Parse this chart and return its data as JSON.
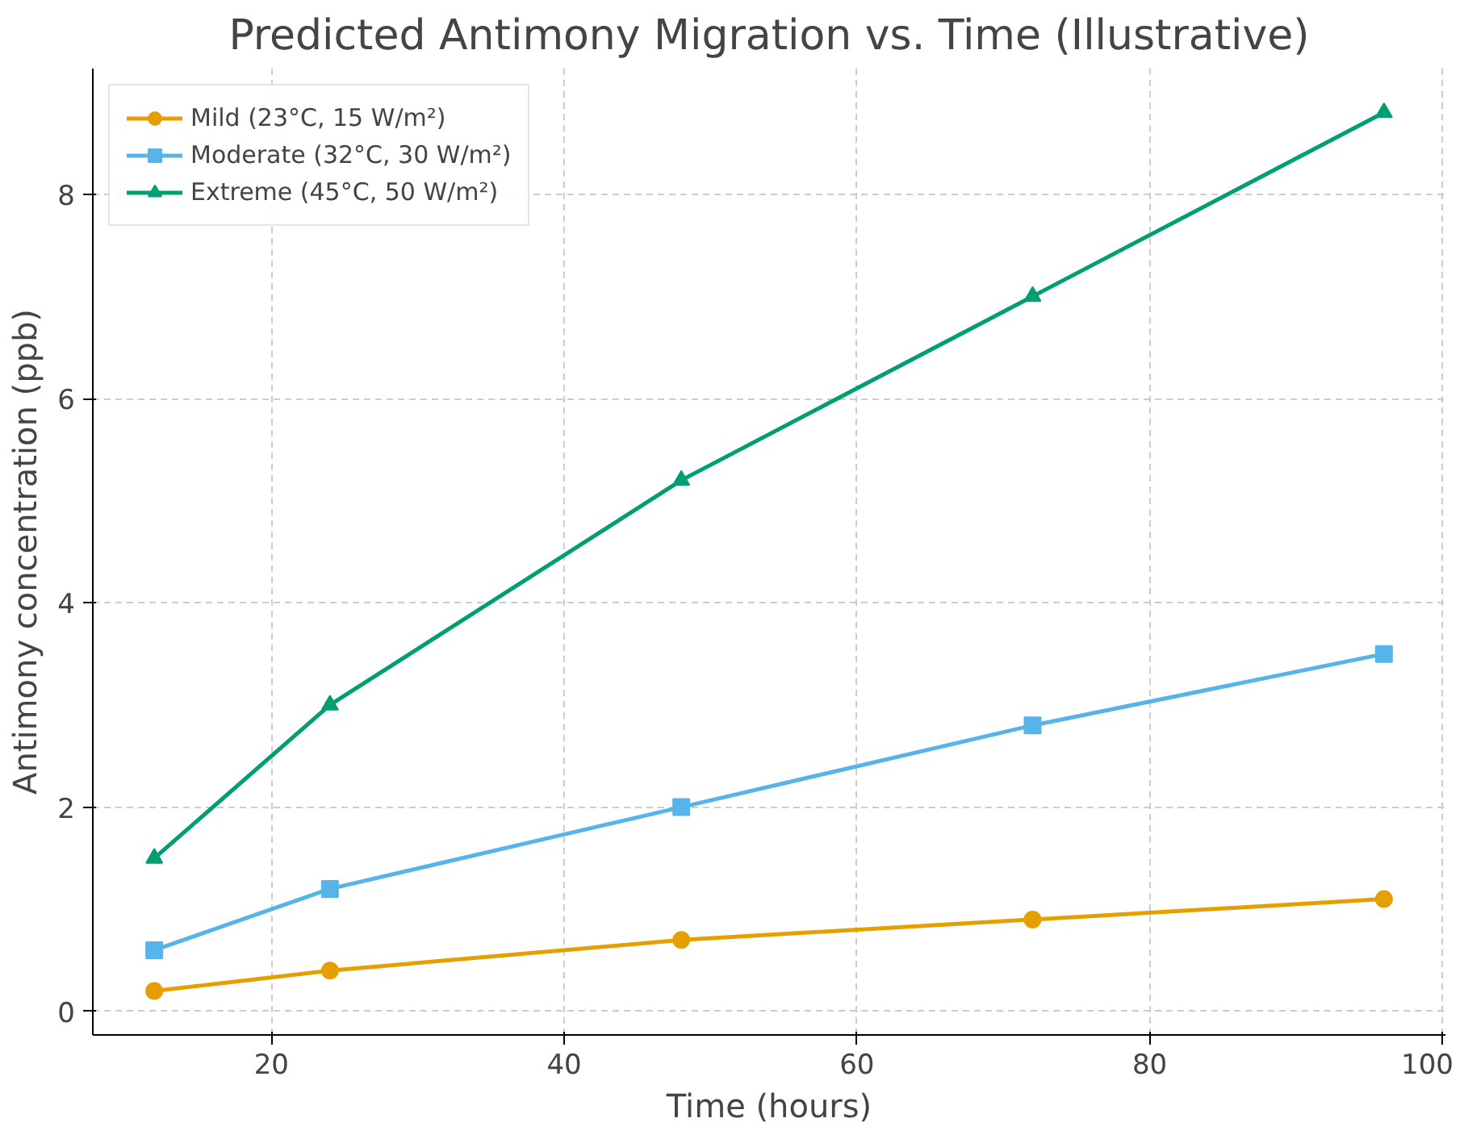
{
  "chart_data": {
    "type": "line",
    "title": "Predicted Antimony Migration vs. Time (Illustrative)",
    "xlabel": "Time (hours)",
    "ylabel": "Antimony concentration (ppb)",
    "x": [
      12,
      24,
      48,
      72,
      96
    ],
    "series": [
      {
        "name": "Mild (23°C, 15 W/m²)",
        "color": "#e69f00",
        "marker": "circle",
        "values": [
          0.2,
          0.4,
          0.7,
          0.9,
          1.1
        ]
      },
      {
        "name": "Moderate (32°C, 30 W/m²)",
        "color": "#56b4e9",
        "marker": "square",
        "values": [
          0.6,
          1.2,
          2.0,
          2.8,
          3.5
        ]
      },
      {
        "name": "Extreme (45°C, 50 W/m²)",
        "color": "#009e73",
        "marker": "triangle",
        "values": [
          1.5,
          3.0,
          5.2,
          7.0,
          8.8
        ]
      }
    ],
    "xlim": [
      7.8,
      100.2
    ],
    "ylim": [
      -0.23,
      9.23
    ],
    "xticks": [
      20,
      40,
      60,
      80,
      100
    ],
    "yticks": [
      0,
      2,
      4,
      6,
      8
    ],
    "grid": true,
    "legend": "top left",
    "line_style": "solid"
  }
}
